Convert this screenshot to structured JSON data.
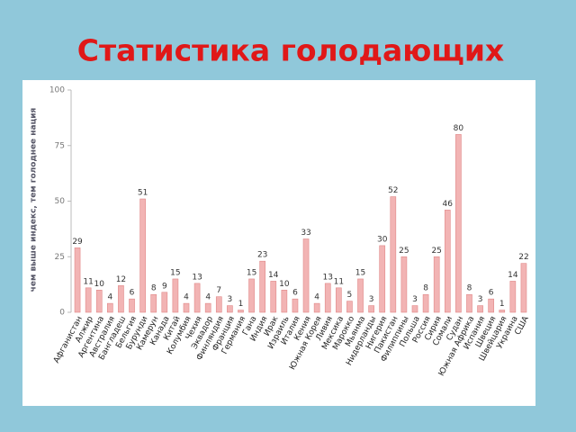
{
  "chart_data": {
    "type": "bar",
    "title": "Статистика голодающих",
    "y_label": "чем выше индекс, тем голоднее нация",
    "categories": [
      "Афганистан",
      "Алжир",
      "Аргентина",
      "Австралия",
      "Бангладеш",
      "Бельгия",
      "Бурунди",
      "Камерун",
      "Канада",
      "Китай",
      "Колумбия",
      "Чехия",
      "Эквадор",
      "Финляндия",
      "Франция",
      "Германия",
      "Гана",
      "Индия",
      "Ирак",
      "Израиль",
      "Италия",
      "Кения",
      "Южная Корея",
      "Ливия",
      "Мексика",
      "Марокко",
      "Мьянма",
      "Нидерланды",
      "Нигерия",
      "Пакистан",
      "Филиппины",
      "Польша",
      "Россия",
      "Сирия",
      "Сомали",
      "Судан",
      "Южная Африка",
      "Испания",
      "Швеция",
      "Швейцария",
      "Украина",
      "США"
    ],
    "values": [
      29,
      11,
      10,
      4,
      12,
      6,
      51,
      8,
      9,
      15,
      4,
      13,
      4,
      7,
      3,
      1,
      15,
      23,
      14,
      10,
      6,
      33,
      4,
      13,
      11,
      5,
      15,
      3,
      30,
      52,
      25,
      3,
      8,
      25,
      46,
      80,
      8,
      3,
      6,
      1,
      14,
      22
    ],
    "color": "#f2b4b4",
    "ylim": [
      0,
      100
    ],
    "yticks": [
      0,
      25,
      50,
      75,
      100
    ],
    "grid": false
  }
}
